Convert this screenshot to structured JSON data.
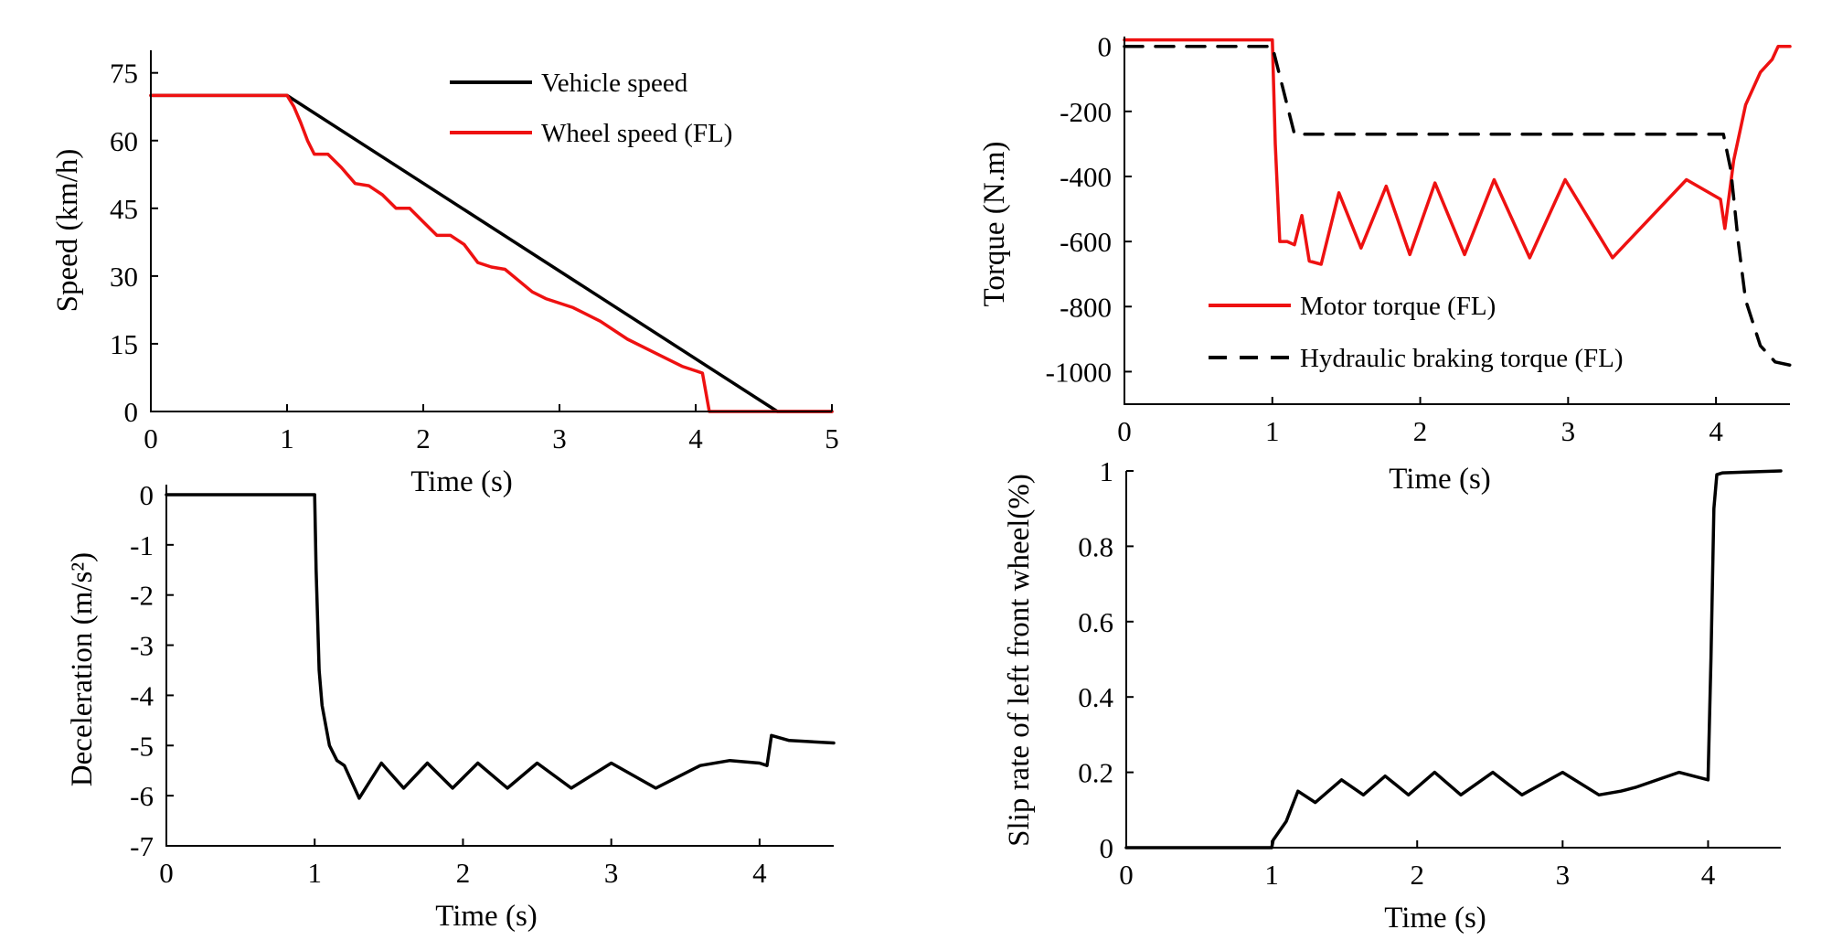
{
  "colors": {
    "black": "#000000",
    "red": "#ee1111"
  },
  "chart_data": [
    {
      "id": "speed",
      "type": "line",
      "xlabel": "Time (s)",
      "ylabel": "Speed (km/h)",
      "xlim": [
        0,
        5
      ],
      "ylim": [
        0,
        80
      ],
      "xticks": [
        "0",
        "1",
        "2",
        "3",
        "4",
        "5"
      ],
      "yticks": [
        "0",
        "15",
        "30",
        "45",
        "60",
        "75"
      ],
      "legend_position": "top-right",
      "series": [
        {
          "name": "Vehicle speed",
          "color": "#000000",
          "dash": "solid",
          "x": [
            0,
            1.0,
            4.6,
            5.0
          ],
          "y": [
            70,
            70,
            0,
            0
          ]
        },
        {
          "name": "Wheel speed (FL)",
          "color": "#ee1111",
          "dash": "solid",
          "x": [
            0,
            1.0,
            1.05,
            1.1,
            1.15,
            1.2,
            1.3,
            1.4,
            1.5,
            1.6,
            1.7,
            1.8,
            1.9,
            2.0,
            2.1,
            2.2,
            2.3,
            2.4,
            2.5,
            2.6,
            2.7,
            2.8,
            2.9,
            3.0,
            3.1,
            3.3,
            3.5,
            3.7,
            3.9,
            4.05,
            4.1,
            4.2,
            4.6,
            5.0
          ],
          "y": [
            70,
            70,
            67.5,
            64,
            60,
            57,
            57,
            54,
            50.5,
            50,
            48,
            45,
            45,
            42,
            39,
            39,
            37,
            33,
            32,
            31.5,
            29,
            26.5,
            25,
            24,
            23,
            20,
            16,
            13,
            10,
            8.5,
            0,
            0,
            0,
            0
          ]
        }
      ]
    },
    {
      "id": "torque",
      "type": "line",
      "xlabel": "Time (s)",
      "ylabel": "Torque (N.m)",
      "xlim": [
        0,
        4.5
      ],
      "ylim": [
        -1100,
        30
      ],
      "xticks": [
        "0",
        "1",
        "2",
        "3",
        "4"
      ],
      "yticks": [
        "0",
        "-200",
        "-400",
        "-600",
        "-800",
        "-1000"
      ],
      "legend_position": "bottom-center",
      "series": [
        {
          "name": "Motor torque (FL)",
          "color": "#ee1111",
          "dash": "solid",
          "x": [
            0,
            1.0,
            1.02,
            1.05,
            1.1,
            1.15,
            1.2,
            1.25,
            1.33,
            1.45,
            1.6,
            1.77,
            1.93,
            2.1,
            2.3,
            2.5,
            2.74,
            2.98,
            3.3,
            3.8,
            4.03,
            4.06,
            4.12,
            4.2,
            4.3,
            4.38,
            4.42,
            4.45,
            4.5
          ],
          "y": [
            20,
            20,
            -300,
            -600,
            -600,
            -610,
            -520,
            -660,
            -670,
            -450,
            -620,
            -430,
            -640,
            -420,
            -640,
            -410,
            -650,
            -410,
            -650,
            -410,
            -470,
            -560,
            -350,
            -180,
            -80,
            -40,
            0,
            0,
            0
          ]
        },
        {
          "name": "Hydraulic braking torque (FL)",
          "color": "#000000",
          "dash": "dashed",
          "x": [
            0,
            1.0,
            1.15,
            1.2,
            4.0,
            4.05,
            4.1,
            4.15,
            4.2,
            4.3,
            4.4,
            4.5
          ],
          "y": [
            0,
            0,
            -270,
            -270,
            -270,
            -270,
            -380,
            -600,
            -780,
            -920,
            -970,
            -980
          ]
        }
      ]
    },
    {
      "id": "deceleration",
      "type": "line",
      "xlabel": "Time (s)",
      "ylabel": "Deceleration (m/s²)",
      "xlim": [
        0,
        4.5
      ],
      "ylim": [
        -7,
        0.2
      ],
      "xticks": [
        "0",
        "1",
        "2",
        "3",
        "4"
      ],
      "yticks": [
        "0",
        "-1",
        "-2",
        "-3",
        "-4",
        "-5",
        "-6",
        "-7"
      ],
      "series": [
        {
          "name": "Deceleration",
          "color": "#000000",
          "dash": "solid",
          "x": [
            0,
            1.0,
            1.01,
            1.03,
            1.05,
            1.1,
            1.15,
            1.2,
            1.3,
            1.45,
            1.6,
            1.76,
            1.93,
            2.1,
            2.3,
            2.5,
            2.73,
            3.0,
            3.3,
            3.6,
            3.8,
            4.0,
            4.05,
            4.08,
            4.2,
            4.5
          ],
          "y": [
            0,
            0,
            -1.5,
            -3.5,
            -4.2,
            -5.0,
            -5.3,
            -5.4,
            -6.05,
            -5.35,
            -5.85,
            -5.35,
            -5.85,
            -5.35,
            -5.85,
            -5.35,
            -5.85,
            -5.35,
            -5.85,
            -5.4,
            -5.3,
            -5.35,
            -5.4,
            -4.8,
            -4.9,
            -4.95
          ]
        }
      ]
    },
    {
      "id": "slip",
      "type": "line",
      "xlabel": "Time (s)",
      "ylabel": "Slip rate of left front wheel(%)",
      "xlim": [
        0,
        4.5
      ],
      "ylim": [
        0,
        1.0
      ],
      "xticks": [
        "0",
        "1",
        "2",
        "3",
        "4"
      ],
      "yticks": [
        "0",
        "0.2",
        "0.4",
        "0.6",
        "0.8",
        "1"
      ],
      "series": [
        {
          "name": "Slip rate",
          "color": "#000000",
          "dash": "solid",
          "x": [
            0,
            1.0,
            1.01,
            1.1,
            1.18,
            1.3,
            1.48,
            1.63,
            1.78,
            1.94,
            2.12,
            2.3,
            2.52,
            2.72,
            3.0,
            3.25,
            3.4,
            3.5,
            3.8,
            4.0,
            4.02,
            4.04,
            4.06,
            4.1,
            4.5
          ],
          "y": [
            0,
            0,
            0.02,
            0.07,
            0.15,
            0.12,
            0.18,
            0.14,
            0.19,
            0.14,
            0.2,
            0.14,
            0.2,
            0.14,
            0.2,
            0.14,
            0.15,
            0.16,
            0.2,
            0.18,
            0.5,
            0.9,
            0.99,
            0.995,
            1.0
          ]
        }
      ]
    }
  ]
}
